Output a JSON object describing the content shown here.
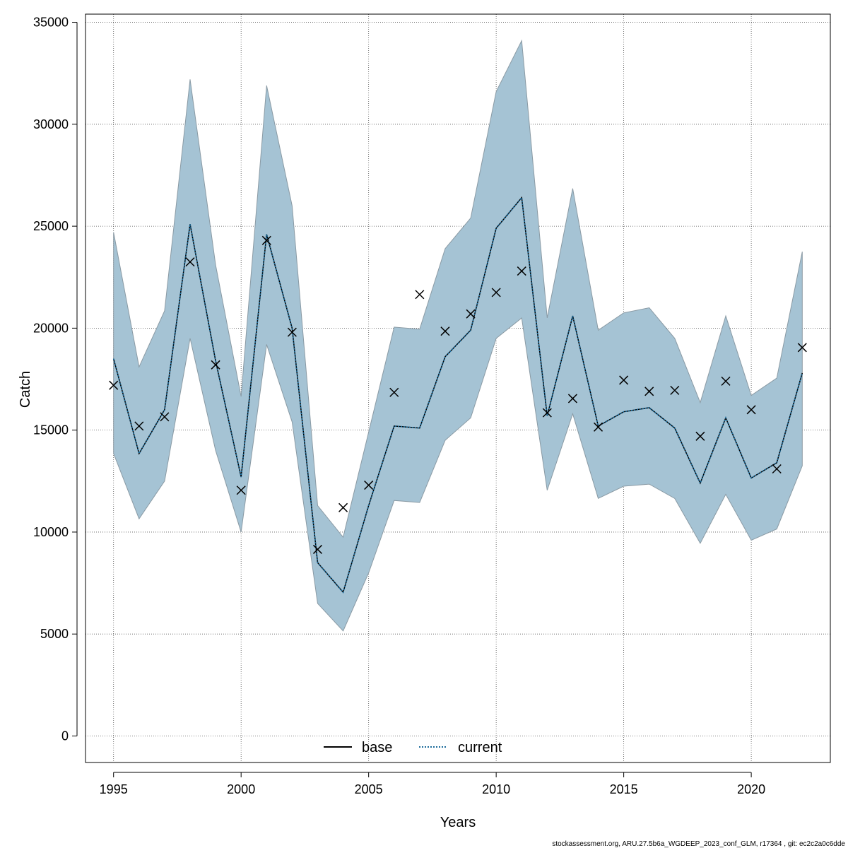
{
  "chart_data": {
    "type": "line",
    "xlabel": "Years",
    "ylabel": "Catch",
    "xlim": [
      1993.9,
      2023.1
    ],
    "ylim": [
      -1300,
      35400
    ],
    "x_ticks": [
      1995,
      2000,
      2005,
      2010,
      2015,
      2020
    ],
    "y_ticks": [
      0,
      5000,
      10000,
      15000,
      20000,
      25000,
      30000,
      35000
    ],
    "grid": true,
    "legend_position": "bottom-center",
    "x": [
      1995,
      1996,
      1997,
      1998,
      1999,
      2000,
      2001,
      2002,
      2003,
      2004,
      2005,
      2006,
      2007,
      2008,
      2009,
      2010,
      2011,
      2012,
      2013,
      2014,
      2015,
      2016,
      2017,
      2018,
      2019,
      2020,
      2021,
      2022
    ],
    "series": [
      {
        "name": "base",
        "style": "solid",
        "color": "#000000",
        "values": [
          18500,
          13850,
          16000,
          25100,
          18400,
          12700,
          24600,
          20000,
          8500,
          7050,
          11300,
          15200,
          15100,
          18600,
          19900,
          24900,
          26400,
          15700,
          20600,
          15200,
          15900,
          16100,
          15100,
          12400,
          15600,
          12650,
          13400,
          17800
        ]
      },
      {
        "name": "current",
        "style": "dotted",
        "color": "#1a6a9a",
        "values": [
          18500,
          13850,
          16000,
          25100,
          18400,
          12700,
          24600,
          20000,
          8500,
          7050,
          11300,
          15200,
          15100,
          18600,
          19900,
          24900,
          26400,
          15700,
          20600,
          15200,
          15900,
          16100,
          15100,
          12400,
          15600,
          12650,
          13400,
          17800
        ]
      }
    ],
    "ci_band": {
      "color": "#a5c3d4",
      "upper": [
        24700,
        18100,
        20850,
        32200,
        23100,
        16650,
        31900,
        26000,
        11300,
        9750,
        14900,
        20050,
        19950,
        23900,
        25400,
        31600,
        34100,
        20500,
        26850,
        19900,
        20750,
        21000,
        19500,
        16350,
        20600,
        16700,
        17550,
        23750
      ],
      "lower": [
        13850,
        10650,
        12500,
        19500,
        14000,
        10000,
        19200,
        15400,
        6500,
        5150,
        8000,
        11550,
        11450,
        14500,
        15600,
        19500,
        20500,
        12050,
        15800,
        11650,
        12250,
        12350,
        11650,
        9450,
        11850,
        9600,
        10150,
        13250
      ]
    },
    "observed": {
      "marker": "x",
      "values": [
        17200,
        15200,
        15650,
        23250,
        18200,
        12050,
        24300,
        19800,
        9150,
        11200,
        12300,
        16850,
        21650,
        19850,
        20700,
        21750,
        22800,
        15850,
        16550,
        15150,
        17450,
        16900,
        16950,
        14700,
        17400,
        16000,
        13100,
        19050
      ]
    }
  },
  "footer": "stockassessment.org, ARU.27.5b6a_WGDEEP_2023_conf_GLM, r17364 , git: ec2c2a0c6dde"
}
